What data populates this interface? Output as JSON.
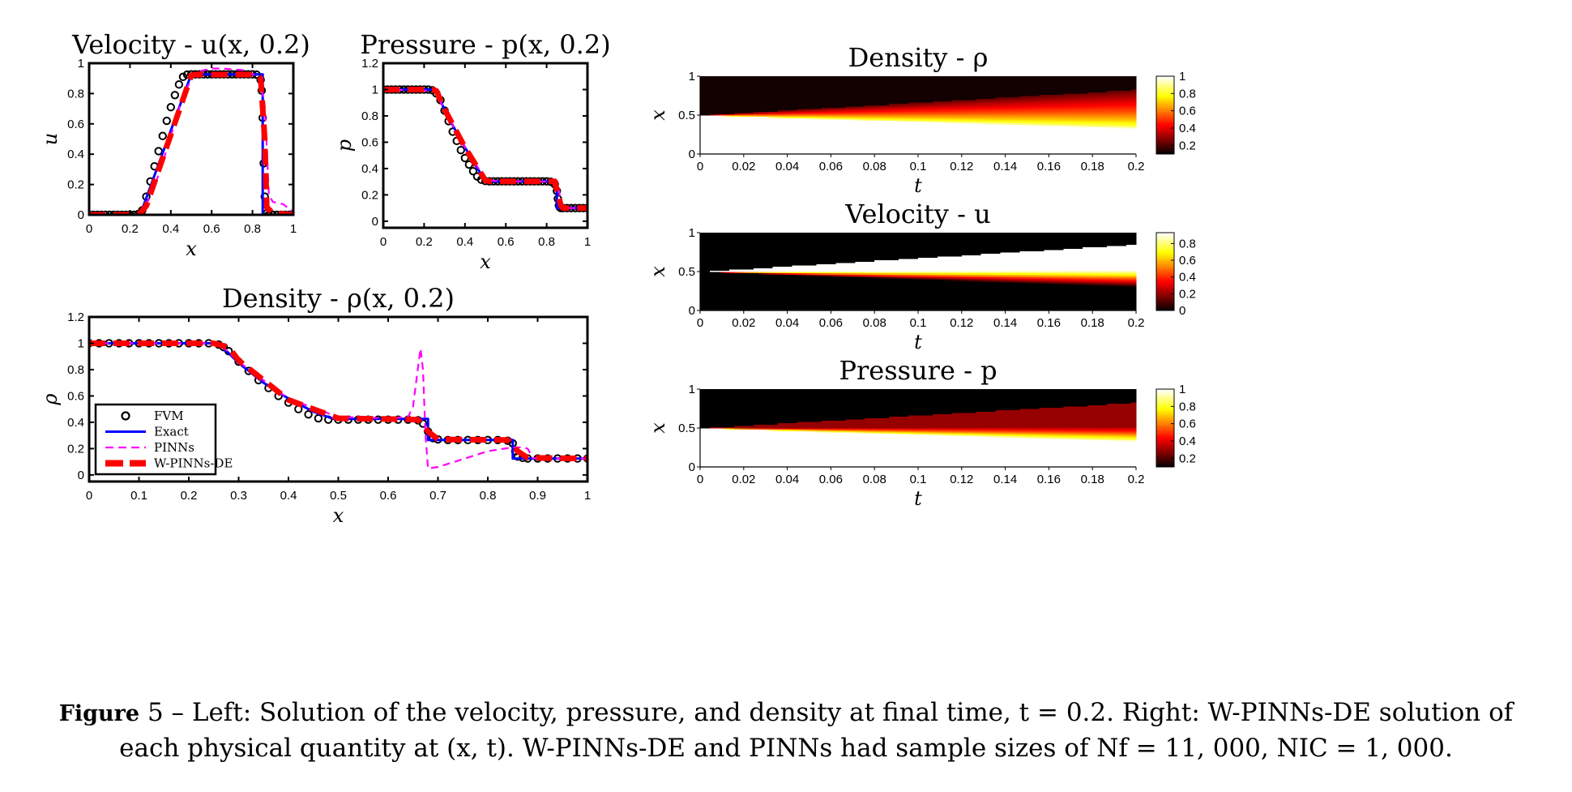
{
  "chart_data": [
    {
      "type": "line",
      "id": "velocity-line",
      "title": "Velocity - u(x, 0.2)",
      "xlabel": "x",
      "ylabel": "u",
      "xlim": [
        0,
        1
      ],
      "ylim": [
        0,
        1
      ],
      "xticks": [
        0,
        0.2,
        0.4,
        0.6,
        0.8,
        1
      ],
      "xtick_labels": [
        "0",
        "0.2",
        "0.4",
        "0.6",
        "0.8",
        "1"
      ],
      "yticks": [
        0,
        0.2,
        0.4,
        0.6,
        0.8,
        1
      ],
      "ytick_labels": [
        "0",
        "0.2",
        "0.4",
        "0.6",
        "0.8",
        "1"
      ],
      "series": [
        {
          "name": "FVM",
          "style": "markers",
          "x": [
            0,
            0.02,
            0.04,
            0.06,
            0.08,
            0.1,
            0.12,
            0.14,
            0.16,
            0.18,
            0.2,
            0.22,
            0.24,
            0.26,
            0.28,
            0.3,
            0.32,
            0.34,
            0.36,
            0.38,
            0.4,
            0.42,
            0.44,
            0.46,
            0.48,
            0.5,
            0.52,
            0.54,
            0.56,
            0.58,
            0.6,
            0.62,
            0.64,
            0.66,
            0.68,
            0.7,
            0.72,
            0.74,
            0.76,
            0.78,
            0.8,
            0.82,
            0.84,
            0.845,
            0.85,
            0.855,
            0.86,
            0.865,
            0.87,
            0.88,
            0.9,
            0.92,
            0.94,
            0.96,
            0.98,
            1.0
          ],
          "y": [
            0,
            0,
            0,
            0,
            0,
            0,
            0,
            0,
            0,
            0,
            0,
            0,
            0.005,
            0.03,
            0.12,
            0.22,
            0.32,
            0.42,
            0.52,
            0.62,
            0.71,
            0.79,
            0.86,
            0.91,
            0.925,
            0.927,
            0.927,
            0.927,
            0.927,
            0.927,
            0.927,
            0.927,
            0.927,
            0.927,
            0.927,
            0.927,
            0.927,
            0.927,
            0.927,
            0.927,
            0.927,
            0.925,
            0.89,
            0.82,
            0.64,
            0.34,
            0.12,
            0.03,
            0.01,
            0,
            0,
            0,
            0,
            0,
            0,
            0
          ]
        },
        {
          "name": "Exact",
          "style": "solid",
          "x": [
            0,
            0.23,
            0.25,
            0.5,
            0.85,
            0.85,
            1
          ],
          "y": [
            0,
            0,
            0,
            0.927,
            0.927,
            0,
            0
          ]
        },
        {
          "name": "PINNs",
          "style": "dashed",
          "x": [
            0,
            0.2,
            0.24,
            0.27,
            0.3,
            0.35,
            0.4,
            0.45,
            0.5,
            0.55,
            0.6,
            0.65,
            0.7,
            0.75,
            0.8,
            0.84,
            0.86,
            0.87,
            0.88,
            0.9,
            0.95,
            1.0
          ],
          "y": [
            0,
            0,
            0.01,
            0.05,
            0.12,
            0.3,
            0.52,
            0.74,
            0.9,
            0.95,
            0.965,
            0.965,
            0.96,
            0.955,
            0.93,
            0.88,
            0.72,
            0.45,
            0.13,
            0.085,
            0.07,
            0.02
          ]
        },
        {
          "name": "W-PINNs-DE",
          "style": "thick-dashed",
          "x": [
            0,
            0.22,
            0.25,
            0.28,
            0.5,
            0.52,
            0.82,
            0.84,
            0.86,
            0.87,
            0.9,
            1.0
          ],
          "y": [
            0,
            0,
            0.01,
            0.06,
            0.92,
            0.925,
            0.925,
            0.9,
            0.5,
            0.05,
            0.01,
            0
          ]
        }
      ]
    },
    {
      "type": "line",
      "id": "pressure-line",
      "title": "Pressure - p(x, 0.2)",
      "xlabel": "x",
      "ylabel": "p",
      "xlim": [
        0,
        1
      ],
      "ylim": [
        -0.05,
        1.2
      ],
      "xticks": [
        0,
        0.2,
        0.4,
        0.6,
        0.8,
        1
      ],
      "xtick_labels": [
        "0",
        "0.2",
        "0.4",
        "0.6",
        "0.8",
        "1"
      ],
      "yticks": [
        0,
        0.2,
        0.4,
        0.6,
        0.8,
        1,
        1.2
      ],
      "ytick_labels": [
        "0",
        "0.2",
        "0.4",
        "0.6",
        "0.8",
        "1",
        "1.2"
      ],
      "series": [
        {
          "name": "FVM",
          "style": "markers",
          "x": [
            0,
            0.02,
            0.04,
            0.06,
            0.08,
            0.1,
            0.12,
            0.14,
            0.16,
            0.18,
            0.2,
            0.22,
            0.24,
            0.26,
            0.28,
            0.3,
            0.32,
            0.34,
            0.36,
            0.38,
            0.4,
            0.42,
            0.44,
            0.46,
            0.48,
            0.5,
            0.52,
            0.54,
            0.56,
            0.58,
            0.6,
            0.62,
            0.64,
            0.66,
            0.68,
            0.7,
            0.72,
            0.74,
            0.76,
            0.78,
            0.8,
            0.82,
            0.84,
            0.85,
            0.855,
            0.86,
            0.865,
            0.87,
            0.88,
            0.9,
            0.92,
            0.94,
            0.96,
            0.98,
            1.0
          ],
          "y": [
            1,
            1,
            1,
            1,
            1,
            1,
            1,
            1,
            1,
            1,
            1,
            1,
            0.995,
            0.97,
            0.92,
            0.84,
            0.76,
            0.68,
            0.61,
            0.54,
            0.48,
            0.43,
            0.38,
            0.34,
            0.315,
            0.305,
            0.303,
            0.303,
            0.303,
            0.303,
            0.303,
            0.303,
            0.303,
            0.303,
            0.303,
            0.303,
            0.303,
            0.303,
            0.303,
            0.303,
            0.303,
            0.3,
            0.28,
            0.23,
            0.17,
            0.12,
            0.105,
            0.1,
            0.1,
            0.1,
            0.1,
            0.1,
            0.1,
            0.1,
            0.1
          ]
        },
        {
          "name": "Exact",
          "style": "solid",
          "x": [
            0,
            0.25,
            0.3,
            0.35,
            0.4,
            0.45,
            0.5,
            0.85,
            0.85,
            1
          ],
          "y": [
            1,
            1,
            0.85,
            0.7,
            0.56,
            0.43,
            0.303,
            0.303,
            0.1,
            0.1
          ]
        },
        {
          "name": "PINNs",
          "style": "dashed",
          "x": [
            0,
            0.25,
            0.3,
            0.4,
            0.5,
            0.55,
            0.84,
            0.86,
            0.87,
            0.9,
            1.0
          ],
          "y": [
            1,
            0.99,
            0.85,
            0.56,
            0.32,
            0.305,
            0.3,
            0.25,
            0.12,
            0.1,
            0.1
          ]
        },
        {
          "name": "W-PINNs-DE",
          "style": "thick-dashed",
          "x": [
            0,
            0.24,
            0.26,
            0.3,
            0.4,
            0.5,
            0.52,
            0.84,
            0.85,
            0.87,
            0.88,
            1.0
          ],
          "y": [
            1,
            1,
            0.99,
            0.85,
            0.56,
            0.31,
            0.303,
            0.303,
            0.24,
            0.12,
            0.1,
            0.1
          ]
        }
      ]
    },
    {
      "type": "line",
      "id": "density-line",
      "title": "Density - ρ(x, 0.2)",
      "xlabel": "x",
      "ylabel": "ρ",
      "xlim": [
        0,
        1
      ],
      "ylim": [
        -0.05,
        1.2
      ],
      "xticks": [
        0,
        0.1,
        0.2,
        0.3,
        0.4,
        0.5,
        0.6,
        0.7,
        0.8,
        0.9,
        1
      ],
      "xtick_labels": [
        "0",
        "0.1",
        "0.2",
        "0.3",
        "0.4",
        "0.5",
        "0.6",
        "0.7",
        "0.8",
        "0.9",
        "1"
      ],
      "yticks": [
        0,
        0.2,
        0.4,
        0.6,
        0.8,
        1,
        1.2
      ],
      "ytick_labels": [
        "0",
        "0.2",
        "0.4",
        "0.6",
        "0.8",
        "1",
        "1.2"
      ],
      "legend": {
        "position": "bottom-left",
        "entries": [
          "FVM",
          "Exact",
          "PINNs",
          "W-PINNs-DE"
        ]
      },
      "series": [
        {
          "name": "FVM",
          "style": "markers",
          "x": [
            0,
            0.02,
            0.04,
            0.06,
            0.08,
            0.1,
            0.12,
            0.14,
            0.16,
            0.18,
            0.2,
            0.22,
            0.24,
            0.26,
            0.27,
            0.28,
            0.3,
            0.32,
            0.34,
            0.36,
            0.38,
            0.4,
            0.42,
            0.44,
            0.46,
            0.48,
            0.5,
            0.52,
            0.54,
            0.56,
            0.58,
            0.6,
            0.62,
            0.64,
            0.66,
            0.67,
            0.68,
            0.69,
            0.7,
            0.72,
            0.74,
            0.76,
            0.78,
            0.8,
            0.82,
            0.84,
            0.85,
            0.855,
            0.86,
            0.87,
            0.88,
            0.9,
            0.92,
            0.94,
            0.96,
            0.98,
            1.0
          ],
          "y": [
            1,
            1,
            1,
            1,
            1,
            1,
            1,
            1,
            1,
            1,
            1,
            1,
            1,
            0.99,
            0.97,
            0.94,
            0.86,
            0.79,
            0.72,
            0.66,
            0.6,
            0.55,
            0.5,
            0.46,
            0.43,
            0.42,
            0.42,
            0.42,
            0.42,
            0.42,
            0.42,
            0.42,
            0.42,
            0.42,
            0.415,
            0.39,
            0.33,
            0.28,
            0.27,
            0.265,
            0.265,
            0.265,
            0.265,
            0.265,
            0.265,
            0.26,
            0.24,
            0.18,
            0.14,
            0.13,
            0.125,
            0.125,
            0.125,
            0.125,
            0.125,
            0.125,
            0.125
          ]
        },
        {
          "name": "Exact",
          "style": "solid",
          "x": [
            0,
            0.26,
            0.3,
            0.35,
            0.4,
            0.45,
            0.49,
            0.68,
            0.68,
            0.85,
            0.85,
            1
          ],
          "y": [
            1,
            1,
            0.85,
            0.7,
            0.58,
            0.48,
            0.426,
            0.426,
            0.265,
            0.265,
            0.125,
            0.125
          ]
        },
        {
          "name": "PINNs",
          "style": "dashed",
          "x": [
            0,
            0.26,
            0.3,
            0.4,
            0.5,
            0.6,
            0.64,
            0.65,
            0.66,
            0.665,
            0.67,
            0.675,
            0.68,
            0.7,
            0.75,
            0.8,
            0.85,
            0.87,
            0.88,
            0.89,
            0.9,
            1.0
          ],
          "y": [
            1,
            1,
            0.86,
            0.58,
            0.44,
            0.43,
            0.44,
            0.52,
            0.82,
            0.96,
            0.8,
            0.3,
            0.05,
            0.06,
            0.12,
            0.18,
            0.21,
            0.21,
            0.2,
            0.13,
            0.125,
            0.125
          ]
        },
        {
          "name": "W-PINNs-DE",
          "style": "thick-dashed",
          "x": [
            0,
            0.25,
            0.28,
            0.3,
            0.4,
            0.5,
            0.6,
            0.66,
            0.68,
            0.7,
            0.84,
            0.86,
            0.88,
            1.0
          ],
          "y": [
            1,
            1,
            0.97,
            0.87,
            0.57,
            0.43,
            0.425,
            0.42,
            0.33,
            0.27,
            0.265,
            0.18,
            0.13,
            0.125
          ]
        }
      ]
    },
    {
      "type": "heatmap",
      "id": "density-heatmap",
      "title": "Density - ρ",
      "xlabel": "t",
      "ylabel": "x",
      "xlim": [
        0,
        0.2
      ],
      "ylim": [
        0,
        1
      ],
      "xticks": [
        0,
        0.02,
        0.04,
        0.06,
        0.08,
        0.1,
        0.12,
        0.14,
        0.16,
        0.18,
        0.2
      ],
      "xtick_labels": [
        "0",
        "0.02",
        "0.04",
        "0.06",
        "0.08",
        "0.1",
        "0.12",
        "0.14",
        "0.16",
        "0.18",
        "0.2"
      ],
      "yticks": [
        0,
        0.5,
        1
      ],
      "ytick_labels": [
        "0",
        "0.5",
        "1"
      ],
      "colormap": "hot",
      "colorbar": {
        "range": [
          0.1,
          1
        ],
        "ticks": [
          0.2,
          0.4,
          0.6,
          0.8,
          1
        ],
        "tick_labels": [
          "0.2",
          "0.4",
          "0.6",
          "0.8",
          "1"
        ]
      },
      "regions_at_t_0.2": [
        {
          "x_range": [
            0,
            0.35
          ],
          "value": 1
        },
        {
          "x_range": [
            0.35,
            0.5
          ],
          "value": 0.43
        },
        {
          "x_range": [
            0.5,
            0.65
          ],
          "value": 0.27
        },
        {
          "x_range": [
            0.65,
            0.85
          ],
          "value": 0.2
        },
        {
          "x_range": [
            0.85,
            1
          ],
          "value": 0.125
        }
      ]
    },
    {
      "type": "heatmap",
      "id": "velocity-heatmap",
      "title": "Velocity - u",
      "xlabel": "t",
      "ylabel": "x",
      "xlim": [
        0,
        0.2
      ],
      "ylim": [
        0,
        1
      ],
      "xticks": [
        0,
        0.02,
        0.04,
        0.06,
        0.08,
        0.1,
        0.12,
        0.14,
        0.16,
        0.18,
        0.2
      ],
      "xtick_labels": [
        "0",
        "0.02",
        "0.04",
        "0.06",
        "0.08",
        "0.1",
        "0.12",
        "0.14",
        "0.16",
        "0.18",
        "0.2"
      ],
      "yticks": [
        0,
        0.5,
        1
      ],
      "ytick_labels": [
        "0",
        "0.5",
        "1"
      ],
      "colormap": "hot",
      "colorbar": {
        "range": [
          0,
          0.93
        ],
        "ticks": [
          0,
          0.2,
          0.4,
          0.6,
          0.8
        ],
        "tick_labels": [
          "0",
          "0.2",
          "0.4",
          "0.6",
          "0.8"
        ]
      },
      "regions_at_t_0.2": [
        {
          "x_range": [
            0,
            0.25
          ],
          "value": 0
        },
        {
          "x_range": [
            0.5,
            0.85
          ],
          "value": 0.93
        },
        {
          "x_range": [
            0.85,
            1
          ],
          "value": 0
        }
      ]
    },
    {
      "type": "heatmap",
      "id": "pressure-heatmap",
      "title": "Pressure - p",
      "xlabel": "t",
      "ylabel": "x",
      "xlim": [
        0,
        0.2
      ],
      "ylim": [
        0,
        1
      ],
      "xticks": [
        0,
        0.02,
        0.04,
        0.06,
        0.08,
        0.1,
        0.12,
        0.14,
        0.16,
        0.18,
        0.2
      ],
      "xtick_labels": [
        "0",
        "0.02",
        "0.04",
        "0.06",
        "0.08",
        "0.1",
        "0.12",
        "0.14",
        "0.16",
        "0.18",
        "0.2"
      ],
      "yticks": [
        0,
        0.5,
        1
      ],
      "ytick_labels": [
        "0",
        "0.5",
        "1"
      ],
      "colormap": "hot",
      "colorbar": {
        "range": [
          0.1,
          1
        ],
        "ticks": [
          0.2,
          0.4,
          0.6,
          0.8,
          1
        ],
        "tick_labels": [
          "0.2",
          "0.4",
          "0.6",
          "0.8",
          "1"
        ]
      },
      "regions_at_t_0.2": [
        {
          "x_range": [
            0,
            0.35
          ],
          "value": 1
        },
        {
          "x_range": [
            0.5,
            0.85
          ],
          "value": 0.3
        },
        {
          "x_range": [
            0.85,
            1
          ],
          "value": 0.1
        }
      ]
    }
  ],
  "series_colors": {
    "FVM": "#000000",
    "Exact": "#0000ff",
    "PINNs": "#ff00ff",
    "W-PINNs-DE": "#ff0000"
  },
  "caption": {
    "label": "Figure",
    "number": "5",
    "text_line1": " – Left: Solution of the velocity, pressure, and density at final time, t = 0.2. Right: W-PINNs-DE solution of",
    "text_line2": "each physical quantity at (x, t). W-PINNs-DE and PINNs had sample sizes of Nf = 11, 000, NIC = 1, 000."
  }
}
